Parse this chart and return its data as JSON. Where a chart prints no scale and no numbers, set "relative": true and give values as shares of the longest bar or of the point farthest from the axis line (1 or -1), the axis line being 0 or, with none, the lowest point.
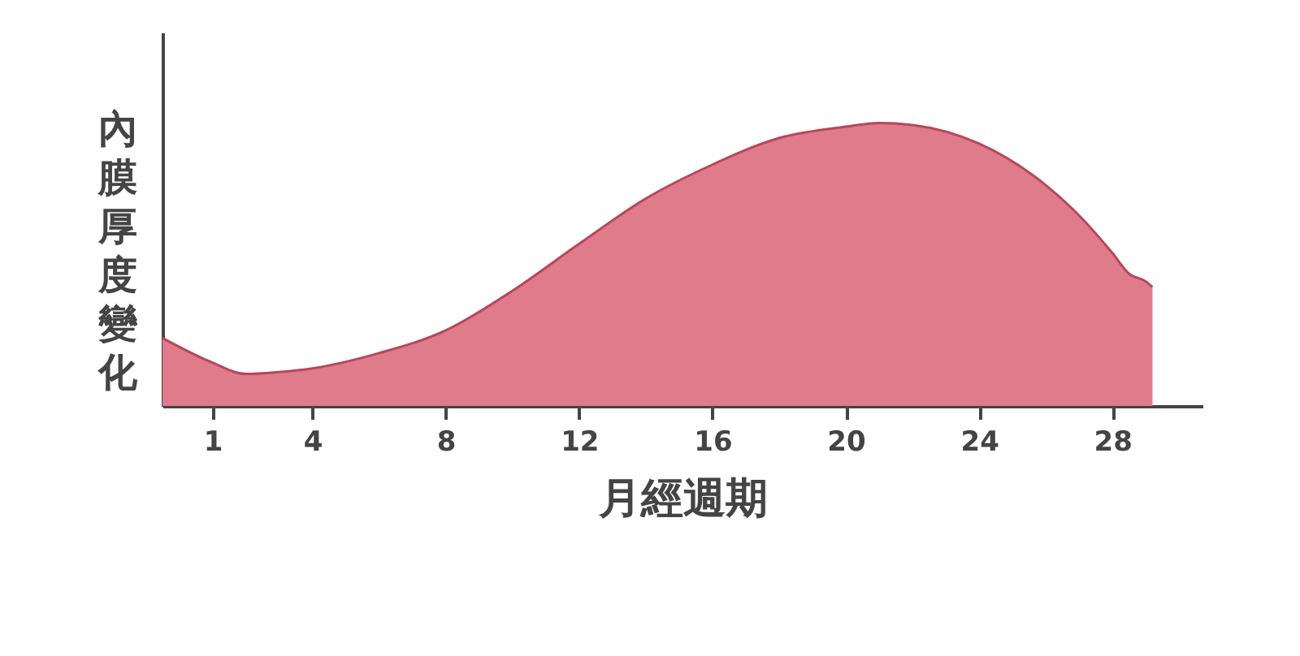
{
  "chart_data": {
    "type": "area",
    "relative": true,
    "xlabel": "月經週期",
    "ylabel": "內膜厚度變化",
    "x": [
      -0.5,
      1,
      2,
      3,
      4,
      6,
      8,
      10,
      12,
      14,
      16,
      18,
      20,
      21,
      22,
      24,
      26,
      27,
      28,
      28.5,
      29,
      29.2
    ],
    "series": [
      {
        "color": "#e07b8c",
        "values": [
          0.24,
          0.153,
          0.113,
          0.12,
          0.133,
          0.187,
          0.267,
          0.407,
          0.573,
          0.733,
          0.853,
          0.947,
          0.987,
          1,
          0.993,
          0.927,
          0.78,
          0.673,
          0.54,
          0.467,
          0.44,
          0.42
        ]
      }
    ],
    "xlim": [
      -0.5,
      30.7
    ],
    "xticks": [
      1,
      4,
      8,
      12,
      16,
      20,
      24,
      28
    ],
    "grid": false
  }
}
